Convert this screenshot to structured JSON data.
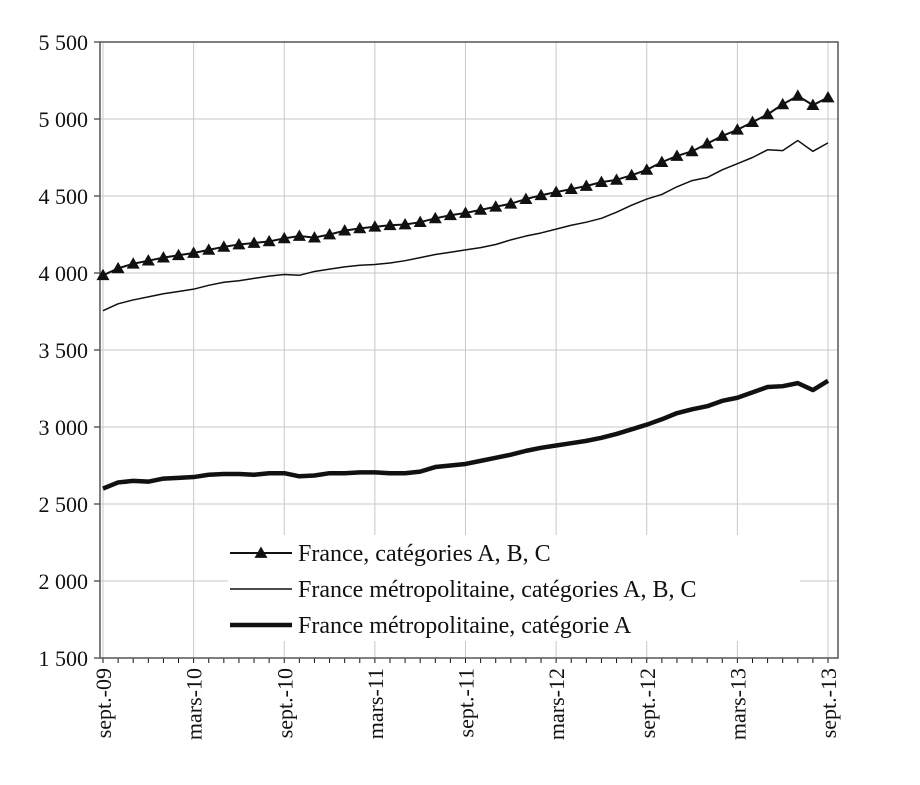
{
  "chart_data": {
    "type": "line",
    "categories": [
      "sept.-09",
      null,
      null,
      null,
      null,
      null,
      "mars-10",
      null,
      null,
      null,
      null,
      null,
      "sept.-10",
      null,
      null,
      null,
      null,
      null,
      "mars-11",
      null,
      null,
      null,
      null,
      null,
      "sept.-11",
      null,
      null,
      null,
      null,
      null,
      "mars-12",
      null,
      null,
      null,
      null,
      null,
      "sept.-12",
      null,
      null,
      null,
      null,
      null,
      "mars-13",
      null,
      null,
      null,
      null,
      null,
      "sept.-13"
    ],
    "series": [
      {
        "name": "France, catégories A, B, C",
        "color": "#111111",
        "line_width": 2,
        "marker": "triangle",
        "values": [
          3985,
          4030,
          4060,
          4080,
          4100,
          4115,
          4130,
          4150,
          4170,
          4185,
          4195,
          4205,
          4225,
          4240,
          4230,
          4250,
          4275,
          4290,
          4300,
          4310,
          4315,
          4330,
          4355,
          4375,
          4390,
          4410,
          4430,
          4450,
          4480,
          4505,
          4525,
          4545,
          4565,
          4590,
          4605,
          4635,
          4670,
          4720,
          4760,
          4790,
          4840,
          4890,
          4930,
          4980,
          5030,
          5095,
          5150,
          5090,
          5140
        ]
      },
      {
        "name": "France métropolitaine, catégories A, B, C",
        "color": "#111111",
        "line_width": 1.5,
        "values": [
          3755,
          3800,
          3825,
          3845,
          3865,
          3880,
          3895,
          3920,
          3940,
          3950,
          3965,
          3980,
          3990,
          3985,
          4010,
          4025,
          4040,
          4050,
          4055,
          4065,
          4080,
          4100,
          4120,
          4135,
          4150,
          4165,
          4185,
          4215,
          4240,
          4260,
          4285,
          4310,
          4330,
          4355,
          4395,
          4440,
          4480,
          4510,
          4560,
          4600,
          4620,
          4670,
          4710,
          4750,
          4800,
          4795,
          4860,
          4790,
          4845
        ]
      },
      {
        "name": "France métropolitaine, catégorie A",
        "color": "#111111",
        "line_width": 4.5,
        "values": [
          2600,
          2640,
          2650,
          2645,
          2665,
          2670,
          2675,
          2690,
          2695,
          2695,
          2690,
          2700,
          2700,
          2680,
          2685,
          2700,
          2700,
          2705,
          2705,
          2700,
          2700,
          2710,
          2740,
          2750,
          2760,
          2780,
          2800,
          2820,
          2845,
          2865,
          2880,
          2895,
          2910,
          2930,
          2955,
          2985,
          3015,
          3050,
          3090,
          3115,
          3135,
          3170,
          3190,
          3225,
          3260,
          3265,
          3285,
          3240,
          3300
        ]
      }
    ],
    "ylim": [
      1500,
      5500
    ],
    "yticks": [
      {
        "value": 1500,
        "label": "1 500"
      },
      {
        "value": 2000,
        "label": "2 000"
      },
      {
        "value": 2500,
        "label": "2 500"
      },
      {
        "value": 3000,
        "label": "3 000"
      },
      {
        "value": 3500,
        "label": "3 500"
      },
      {
        "value": 4000,
        "label": "4 000"
      },
      {
        "value": 4500,
        "label": "4 500"
      },
      {
        "value": 5000,
        "label": "5 000"
      },
      {
        "value": 5500,
        "label": "5 500"
      }
    ],
    "grid": true
  }
}
